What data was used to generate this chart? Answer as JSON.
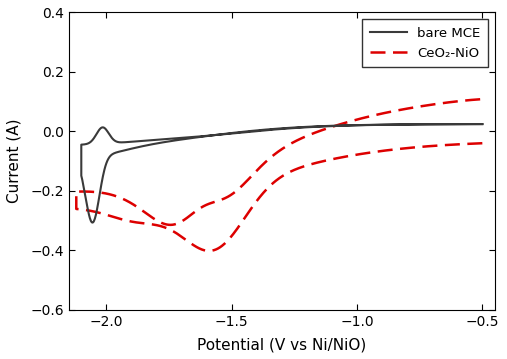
{
  "title": "",
  "xlabel": "Potential (V vs Ni/NiO)",
  "ylabel": "Current (A)",
  "xlim": [
    -2.15,
    -0.45
  ],
  "ylim": [
    -0.6,
    0.4
  ],
  "xticks": [
    -2.0,
    -1.5,
    -1.0,
    -0.5
  ],
  "yticks": [
    -0.6,
    -0.4,
    -0.2,
    0.0,
    0.2,
    0.4
  ],
  "legend": [
    "bare MCE",
    "CeO₂-NiO"
  ],
  "bare_mce_color": "#3a3a3a",
  "ceo2_nio_color": "#dd0000",
  "background_color": "#ffffff",
  "bare_mce_lw": 1.5,
  "ceo2_nio_lw": 1.8
}
